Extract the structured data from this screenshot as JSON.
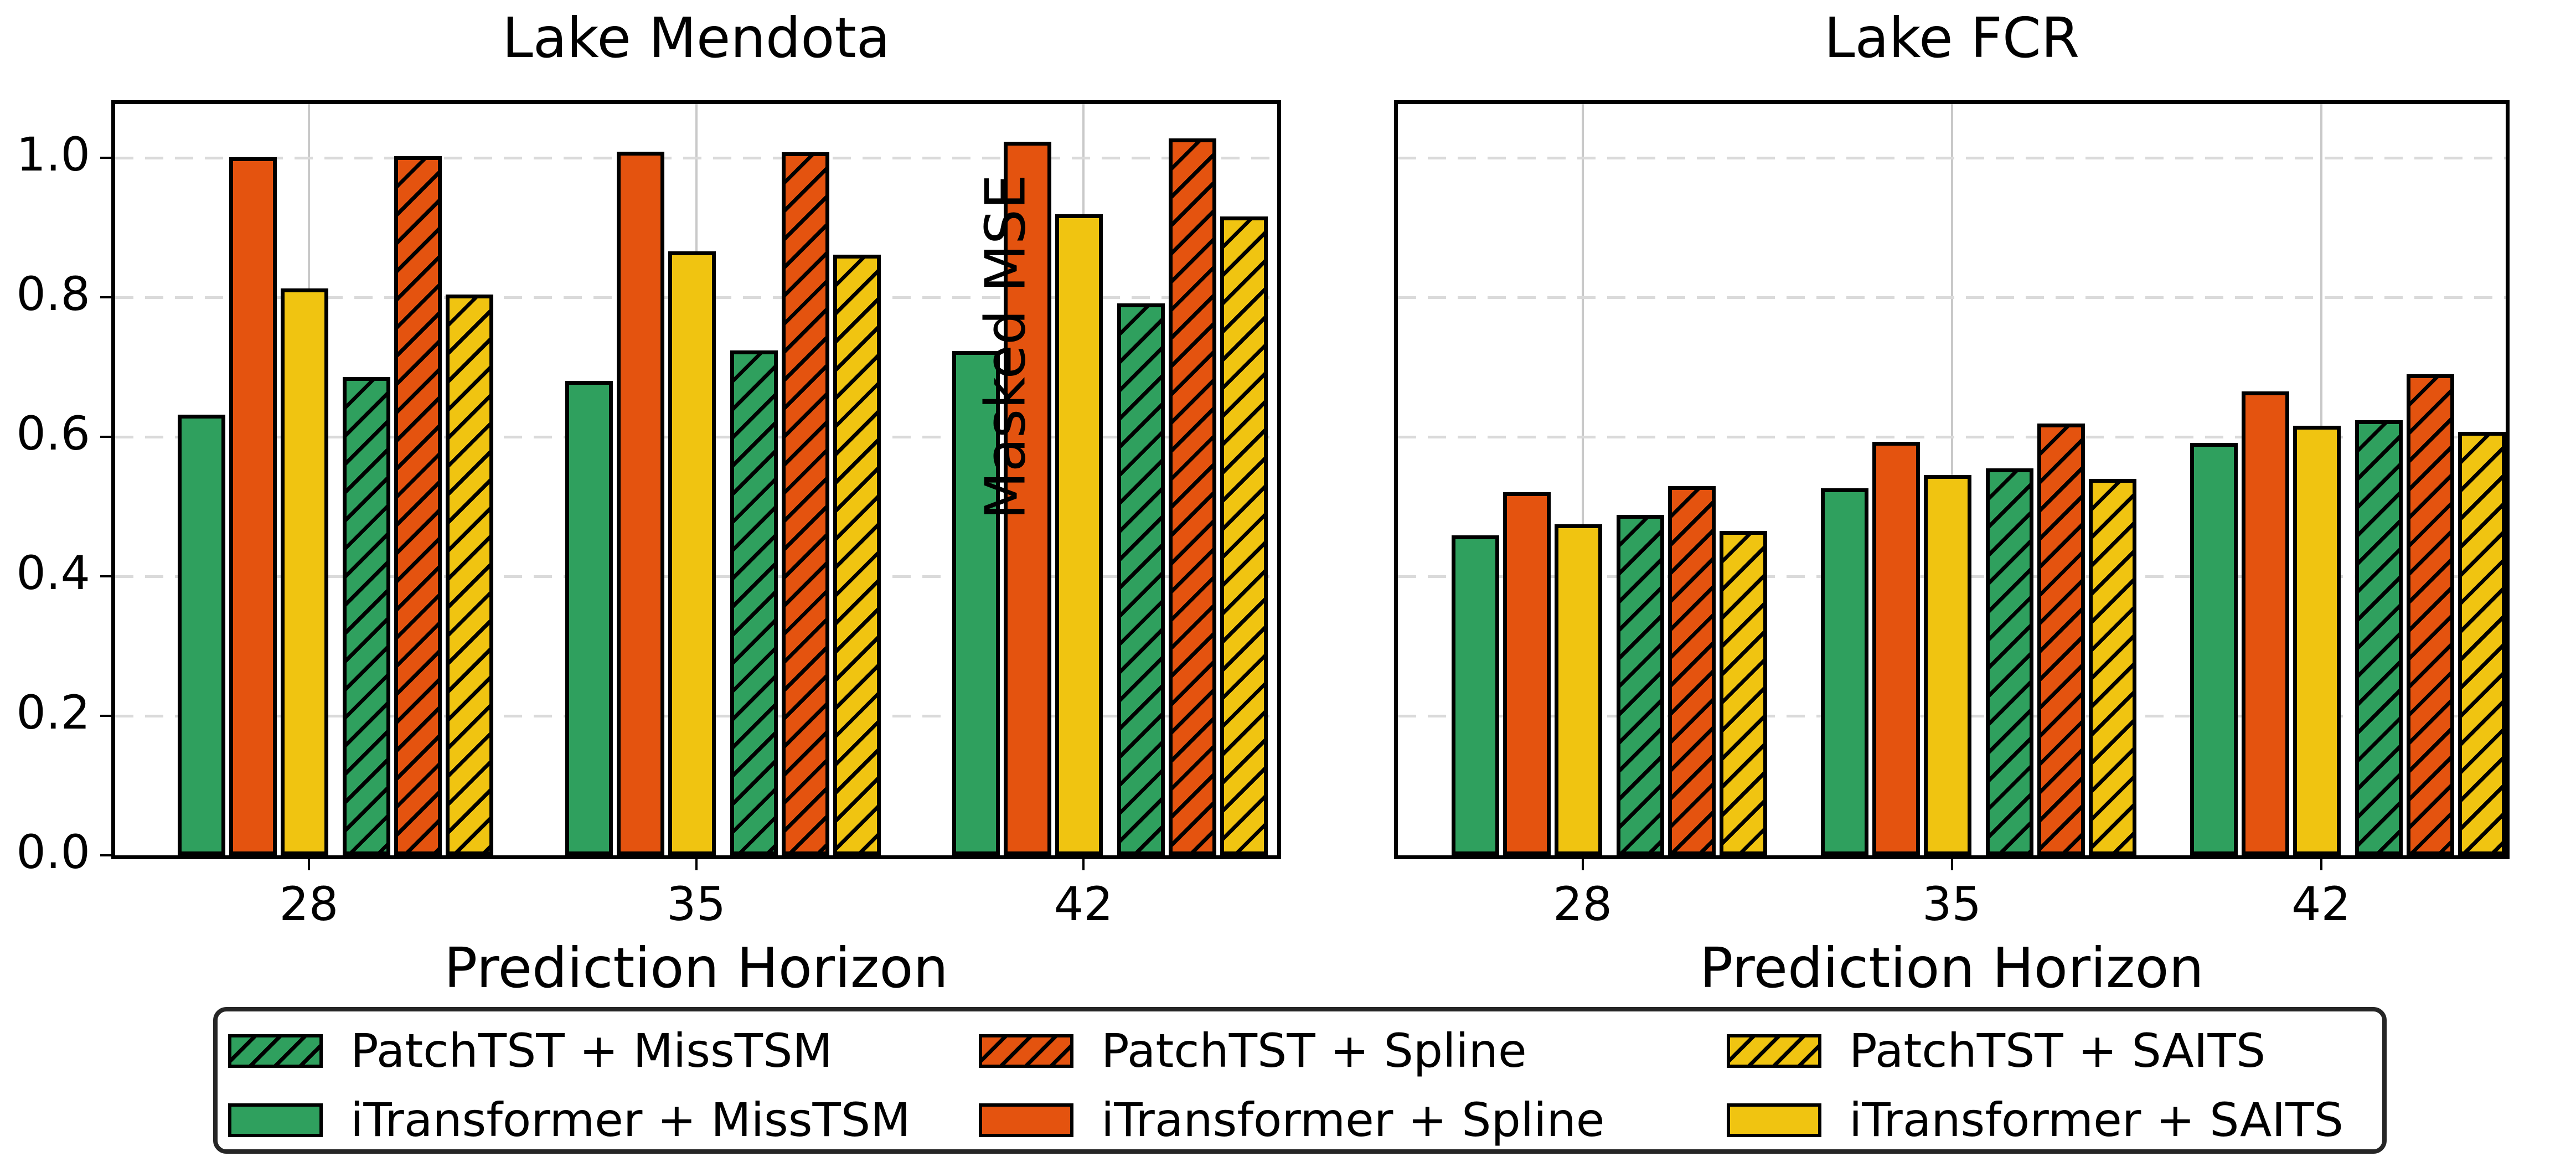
{
  "figure": {
    "background": "#ffffff",
    "ylabel": "Masked MSE",
    "accent_colors": {
      "green": "#2fa05e",
      "orange": "#e4530f",
      "yellow": "#f0c411",
      "edge": "#000000",
      "vgrid": "#c9c9c9",
      "hgrid": "#dadada"
    }
  },
  "chart_data": [
    {
      "type": "bar",
      "title": "Lake Mendota",
      "xlabel": "Prediction Horizon",
      "ylabel": "",
      "categories": [
        "28",
        "35",
        "42"
      ],
      "ylim": [
        0,
        1.077
      ],
      "yticks": [
        {
          "label": "0.0",
          "value": 0.0
        },
        {
          "label": "0.2",
          "value": 0.2
        },
        {
          "label": "0.4",
          "value": 0.4
        },
        {
          "label": "0.6",
          "value": 0.6
        },
        {
          "label": "0.8",
          "value": 0.8
        },
        {
          "label": "1.0",
          "value": 1.0
        }
      ],
      "ygrid_values": [
        0.2,
        0.4,
        0.6,
        0.8,
        1.0
      ],
      "grid": {
        "vertical_at_ticks": true,
        "horizontal_dashed": true
      },
      "legend_position": "below-figure",
      "series": [
        {
          "name": "iTransformer + MissTSM",
          "color": "#2fa05e",
          "hatch": false,
          "values": [
            0.632,
            0.68,
            0.723
          ]
        },
        {
          "name": "iTransformer + Spline",
          "color": "#e4530f",
          "hatch": false,
          "values": [
            1.001,
            1.009,
            1.023
          ]
        },
        {
          "name": "iTransformer + SAITS",
          "color": "#f0c411",
          "hatch": false,
          "values": [
            0.813,
            0.866,
            0.919
          ]
        },
        {
          "name": "PatchTST + MissTSM",
          "color": "#2fa05e",
          "hatch": true,
          "values": [
            0.686,
            0.724,
            0.791
          ]
        },
        {
          "name": "PatchTST + Spline",
          "color": "#e4530f",
          "hatch": true,
          "values": [
            1.002,
            1.008,
            1.028
          ]
        },
        {
          "name": "PatchTST + SAITS",
          "color": "#f0c411",
          "hatch": true,
          "values": [
            0.804,
            0.861,
            0.916
          ]
        }
      ]
    },
    {
      "type": "bar",
      "title": "Lake FCR",
      "xlabel": "Prediction Horizon",
      "ylabel": "Masked MSE",
      "categories": [
        "28",
        "35",
        "42"
      ],
      "ylim": [
        0,
        1.077
      ],
      "yticks": [],
      "ygrid_values": [
        0.2,
        0.4,
        0.6,
        0.8,
        1.0
      ],
      "grid": {
        "vertical_at_ticks": true,
        "horizontal_dashed": true
      },
      "legend_position": "below-figure",
      "series": [
        {
          "name": "iTransformer + MissTSM",
          "color": "#2fa05e",
          "hatch": false,
          "values": [
            0.459,
            0.526,
            0.591
          ]
        },
        {
          "name": "iTransformer + Spline",
          "color": "#e4530f",
          "hatch": false,
          "values": [
            0.521,
            0.593,
            0.665
          ]
        },
        {
          "name": "iTransformer + SAITS",
          "color": "#f0c411",
          "hatch": false,
          "values": [
            0.475,
            0.545,
            0.616
          ]
        },
        {
          "name": "PatchTST + MissTSM",
          "color": "#2fa05e",
          "hatch": true,
          "values": [
            0.488,
            0.555,
            0.624
          ]
        },
        {
          "name": "PatchTST + Spline",
          "color": "#e4530f",
          "hatch": true,
          "values": [
            0.529,
            0.619,
            0.69
          ]
        },
        {
          "name": "PatchTST + SAITS",
          "color": "#f0c411",
          "hatch": true,
          "values": [
            0.465,
            0.54,
            0.607
          ]
        }
      ]
    }
  ],
  "legend": {
    "entries": [
      {
        "label": "PatchTST + MissTSM",
        "color": "#2fa05e",
        "hatch": true
      },
      {
        "label": "iTransformer + MissTSM",
        "color": "#2fa05e",
        "hatch": false
      },
      {
        "label": "PatchTST + Spline",
        "color": "#e4530f",
        "hatch": true
      },
      {
        "label": "iTransformer + Spline",
        "color": "#e4530f",
        "hatch": false
      },
      {
        "label": "PatchTST + SAITS",
        "color": "#f0c411",
        "hatch": true
      },
      {
        "label": "iTransformer + SAITS",
        "color": "#f0c411",
        "hatch": false
      }
    ]
  }
}
